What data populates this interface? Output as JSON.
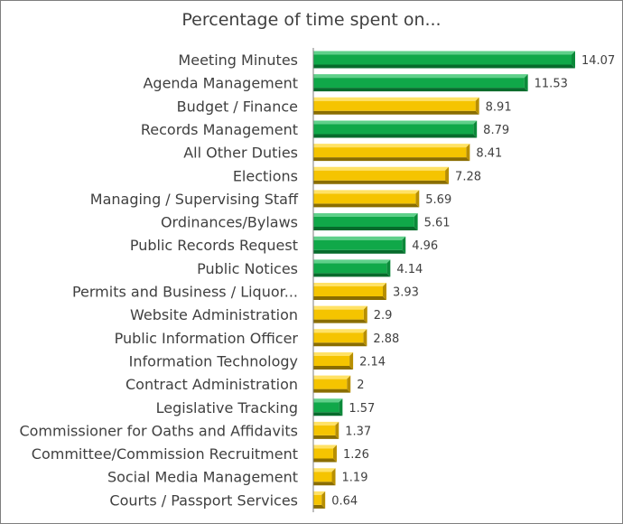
{
  "chart_data": {
    "type": "bar",
    "orientation": "horizontal",
    "title": "Percentage of time spent on...",
    "xlabel": "",
    "ylabel": "",
    "grid": false,
    "xlim": [
      0,
      15
    ],
    "categories": [
      "Meeting Minutes",
      "Agenda Management",
      "Budget / Finance",
      "Records Management",
      "All Other Duties",
      "Elections",
      "Managing / Supervising Staff",
      "Ordinances/Bylaws",
      "Public Records Request",
      "Public Notices",
      "Permits and Business / Liquor...",
      "Website Administration",
      "Public Information Officer",
      "Information Technology",
      "Contract Administration",
      "Legislative Tracking",
      "Commissioner for Oaths and Affidavits",
      "Committee/Commission Recruitment",
      "Social Media Management",
      "Courts / Passport Services"
    ],
    "values": [
      14.07,
      11.53,
      8.91,
      8.79,
      8.41,
      7.28,
      5.69,
      5.61,
      4.96,
      4.14,
      3.93,
      2.9,
      2.88,
      2.14,
      2,
      1.57,
      1.37,
      1.26,
      1.19,
      0.64
    ],
    "value_labels": [
      "14.07",
      "11.53",
      "8.91",
      "8.79",
      "8.41",
      "7.28",
      "5.69",
      "5.61",
      "4.96",
      "4.14",
      "3.93",
      "2.9",
      "2.88",
      "2.14",
      "2",
      "1.57",
      "1.37",
      "1.26",
      "1.19",
      "0.64"
    ],
    "bar_colors": [
      "green",
      "green",
      "gold",
      "green",
      "gold",
      "gold",
      "gold",
      "green",
      "green",
      "green",
      "gold",
      "gold",
      "gold",
      "gold",
      "gold",
      "green",
      "gold",
      "gold",
      "gold",
      "gold"
    ],
    "palette": {
      "green": {
        "face": "#10a849",
        "top": "#5fd08a",
        "bottom": "#066b2c",
        "end": "#0b8a3a"
      },
      "gold": {
        "face": "#f5c400",
        "top": "#ffe266",
        "bottom": "#8a6d00",
        "end": "#b88f00"
      }
    },
    "axis_color": "#7f7f7f",
    "label_color": "#404040"
  }
}
